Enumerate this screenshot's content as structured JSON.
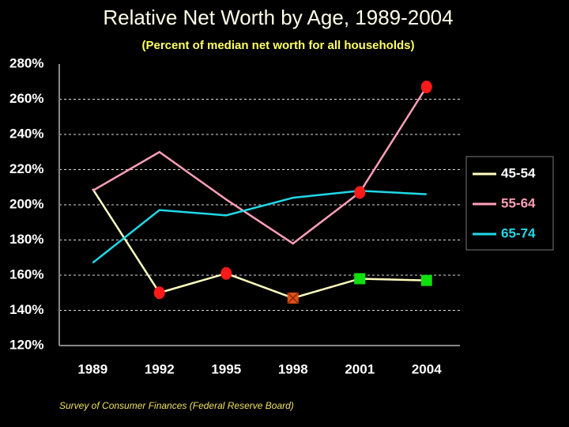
{
  "chart_data": {
    "type": "line",
    "title": "Relative Net Worth by Age, 1989-2004",
    "subtitle": "(Percent of median net worth for all households)",
    "source": "Survey of Consumer Finances (Federal Reserve Board)",
    "categories": [
      "1989",
      "1992",
      "1995",
      "1998",
      "2001",
      "2004"
    ],
    "series": [
      {
        "name": "45-54",
        "color": "#ffffc0",
        "values": [
          209,
          150,
          161,
          147,
          158,
          157
        ],
        "markers": [
          null,
          {
            "shape": "circle",
            "color": "#ff1a1a"
          },
          {
            "shape": "circle",
            "color": "#ff1a1a"
          },
          {
            "shape": "xsquare",
            "color": "#e0501a"
          },
          {
            "shape": "square",
            "color": "#10e010"
          },
          {
            "shape": "square",
            "color": "#10e010"
          }
        ]
      },
      {
        "name": "55-64",
        "color": "#ff9fb8",
        "values": [
          208,
          230,
          203,
          178,
          207,
          267
        ],
        "markers": [
          null,
          null,
          null,
          null,
          {
            "shape": "circle",
            "color": "#ff1a1a"
          },
          {
            "shape": "circle",
            "color": "#ff1a1a"
          }
        ]
      },
      {
        "name": "65-74",
        "color": "#20d8e8",
        "values": [
          167,
          197,
          194,
          204,
          208,
          206
        ]
      }
    ],
    "ylim": [
      120,
      280
    ],
    "yticks": [
      {
        "value": 120,
        "label": "120%"
      },
      {
        "value": 140,
        "label": "140%"
      },
      {
        "value": 160,
        "label": "160%"
      },
      {
        "value": 180,
        "label": "180%"
      },
      {
        "value": 200,
        "label": "200%"
      },
      {
        "value": 220,
        "label": "220%"
      },
      {
        "value": 240,
        "label": "240%"
      },
      {
        "value": 260,
        "label": "260%"
      },
      {
        "value": 280,
        "label": "280%"
      }
    ],
    "grid": true,
    "legend": "right"
  }
}
